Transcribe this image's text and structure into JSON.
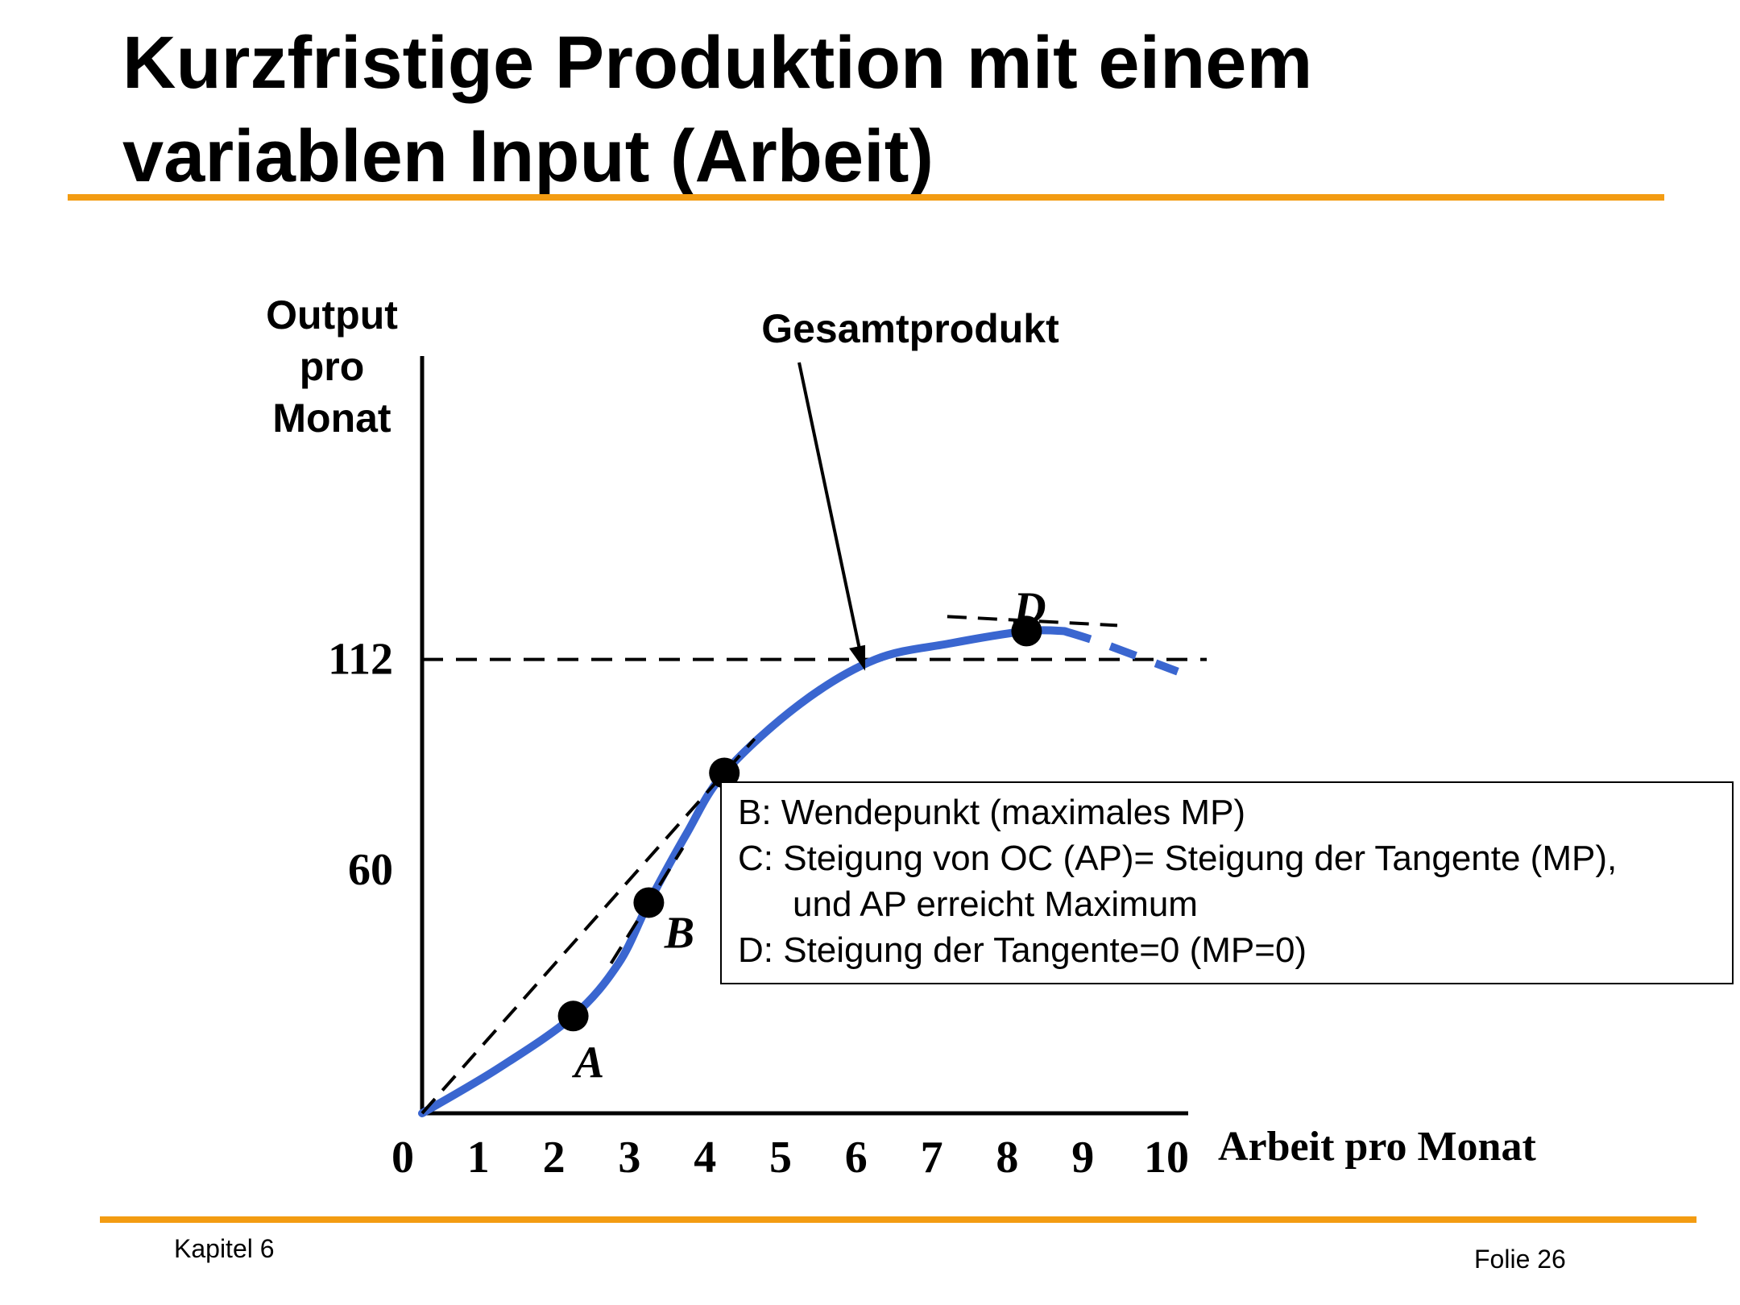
{
  "slide": {
    "title_line1": "Kurzfristige Produktion mit einem",
    "title_line2": "variablen Input (Arbeit)",
    "footer_left": "Kapitel 6",
    "footer_right": "Folie 26",
    "accent_color": "#F39C12"
  },
  "chart_data": {
    "type": "line",
    "ylabel": [
      "Output",
      "pro",
      "Monat"
    ],
    "xlabel": "Arbeit pro Monat",
    "x_ticks": [
      "0",
      "1",
      "2",
      "3",
      "4",
      "5",
      "6",
      "7",
      "8",
      "9",
      "10"
    ],
    "y_ticks": [
      {
        "label": "60",
        "value": 60
      },
      {
        "label": "112",
        "value": 112
      }
    ],
    "xlim": [
      0,
      10
    ],
    "ylim": [
      0,
      128
    ],
    "grid": false,
    "curve_color": "#3A66D0",
    "series": [
      {
        "name": "Gesamtprodukt",
        "x": [
          0,
          1,
          2,
          2.6,
          3,
          3.5,
          4,
          5,
          6,
          7,
          8,
          8.5
        ],
        "y": [
          0,
          11,
          24,
          37,
          52,
          69,
          84,
          101,
          112,
          116,
          119,
          119
        ],
        "extrapolated": {
          "x": [
            8.5,
            9,
            10
          ],
          "y": [
            119,
            116,
            109
          ]
        }
      }
    ],
    "points": [
      {
        "label": "A",
        "x": 2,
        "y": 24
      },
      {
        "label": "B",
        "x": 3,
        "y": 52
      },
      {
        "label": "C",
        "x": 4,
        "y": 84
      },
      {
        "label": "D",
        "x": 8,
        "y": 119
      }
    ],
    "reference_lines": [
      {
        "type": "horizontal",
        "y": 112
      },
      {
        "type": "tangent_through_origin",
        "point": "C"
      },
      {
        "type": "tangent",
        "point": "B"
      },
      {
        "type": "tangent",
        "point": "D"
      }
    ],
    "annotations": [
      {
        "text": "Gesamtprodukt",
        "target": {
          "x": 5.8,
          "y": 110
        }
      }
    ],
    "legend": [
      "B: Wendepunkt (maximales MP)",
      "C: Steigung von OC (AP)= Steigung der Tangente (MP),",
      "und AP erreicht Maximum",
      "D: Steigung der Tangente=0 (MP=0)"
    ]
  }
}
